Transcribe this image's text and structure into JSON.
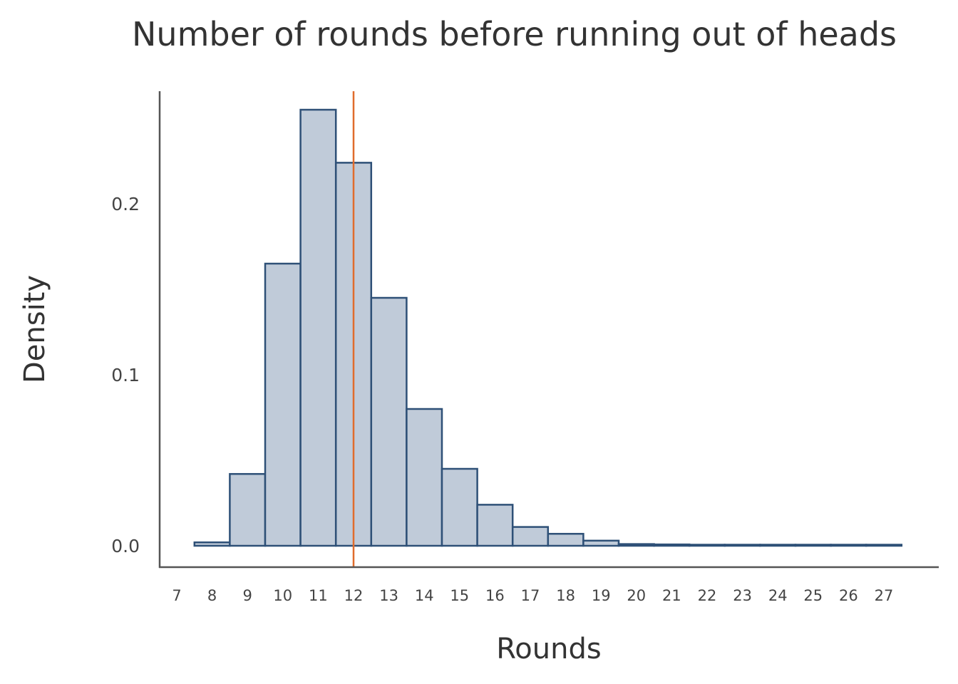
{
  "chart_data": {
    "type": "bar",
    "title": "Number of rounds before running out of heads",
    "xlabel": "Rounds",
    "ylabel": "Density",
    "categories": [
      8,
      9,
      10,
      11,
      12,
      13,
      14,
      15,
      16,
      17,
      18,
      19,
      20,
      21,
      22,
      23,
      24,
      25,
      26,
      27
    ],
    "values": [
      0.002,
      0.042,
      0.165,
      0.255,
      0.224,
      0.145,
      0.08,
      0.045,
      0.024,
      0.011,
      0.007,
      0.003,
      0.001,
      0.0008,
      0.0005,
      0.0004,
      0.0003,
      0.0003,
      0.0002,
      0.0002
    ],
    "bin_width": 1,
    "xlim": [
      7,
      27.5
    ],
    "ylim": [
      -0.012,
      0.27
    ],
    "yticks": [
      0.0,
      0.1,
      0.2
    ],
    "ytick_labels": [
      "0.0",
      "0.1",
      "0.2"
    ],
    "xticks": [
      7,
      8,
      9,
      10,
      11,
      12,
      13,
      14,
      15,
      16,
      17,
      18,
      19,
      20,
      21,
      22,
      23,
      24,
      25,
      26,
      27
    ],
    "xtick_labels": [
      "7",
      "8",
      "9",
      "10",
      "11",
      "12",
      "13",
      "14",
      "15",
      "16",
      "17",
      "18",
      "19",
      "20",
      "21",
      "22",
      "23",
      "24",
      "25",
      "26",
      "27"
    ],
    "reference_line": {
      "x": 12,
      "color": "#e06c2c"
    },
    "bar_fill": "#c0cbd9",
    "bar_stroke": "#2e5077",
    "axis_color": "#555555",
    "text_color": "#333333",
    "grid": false,
    "legend": "none"
  }
}
